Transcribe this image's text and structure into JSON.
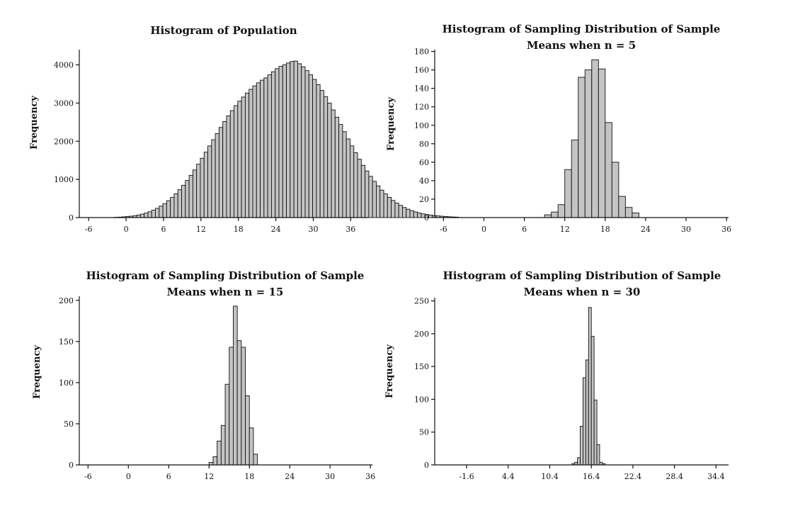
{
  "colors": {
    "bar_fill": "#c4c4c4",
    "bar_stroke": "#111111",
    "axis": "#111111",
    "text": "#111111"
  },
  "chart_data": [
    {
      "type": "bar",
      "title_lines": [
        "Histogram of Population"
      ],
      "ylabel": "Frequency",
      "xlim": [
        -7.5,
        38.8
      ],
      "ylim": [
        0,
        4400
      ],
      "xticks": [
        -6,
        0,
        6,
        12,
        18,
        24,
        30,
        36
      ],
      "xtick_labels": [
        "-6",
        "0",
        "6",
        "12",
        "18",
        "24",
        "30",
        "36"
      ],
      "yticks": [
        0,
        1000,
        2000,
        3000,
        4000
      ],
      "grid": false,
      "bin_width": 0.6,
      "bins_start": -1.9,
      "values": [
        8,
        12,
        18,
        26,
        36,
        50,
        66,
        90,
        118,
        152,
        194,
        242,
        300,
        366,
        442,
        528,
        624,
        730,
        846,
        972,
        1106,
        1248,
        1398,
        1554,
        1714,
        1876,
        2040,
        2202,
        2362,
        2516,
        2664,
        2802,
        2932,
        3050,
        3158,
        3262,
        3360,
        3450,
        3530,
        3600,
        3660,
        3740,
        3820,
        3900,
        3960,
        4000,
        4050,
        4090,
        4100,
        4030,
        3950,
        3850,
        3740,
        3620,
        3480,
        3330,
        3170,
        3000,
        2820,
        2630,
        2440,
        2250,
        2060,
        1880,
        1700,
        1530,
        1370,
        1220,
        1080,
        950,
        830,
        720,
        620,
        530,
        450,
        380,
        320,
        265,
        220,
        180,
        148,
        120,
        98,
        80,
        66,
        54,
        44,
        36,
        28,
        22,
        16,
        12
      ]
    },
    {
      "type": "bar",
      "title_lines": [
        "Histogram of Sampling Distribution of Sample",
        "Means when n = 5"
      ],
      "ylabel": "Frequency",
      "xlim": [
        -7.3,
        36.3
      ],
      "ylim": [
        0,
        182
      ],
      "xticks": [
        -6,
        0,
        6,
        12,
        18,
        24,
        30,
        36
      ],
      "xtick_labels": [
        "-6",
        "0",
        "6",
        "12",
        "18",
        "24",
        "30",
        "36"
      ],
      "yticks": [
        0,
        20,
        40,
        60,
        80,
        100,
        120,
        140,
        160,
        180
      ],
      "grid": false,
      "bin_width": 1.0,
      "bins_start": 9,
      "values": [
        3,
        6,
        14,
        52,
        84,
        152,
        160,
        171,
        161,
        103,
        60,
        23,
        11,
        5
      ]
    },
    {
      "type": "bar",
      "title_lines": [
        "Histogram of Sampling Distribution of Sample",
        "Means when n = 15"
      ],
      "ylabel": "Frequency",
      "xlim": [
        -7.3,
        36.3
      ],
      "ylim": [
        0,
        205
      ],
      "xticks": [
        -6,
        0,
        6,
        12,
        18,
        24,
        30,
        36
      ],
      "xtick_labels": [
        "-6",
        "0",
        "6",
        "12",
        "18",
        "24",
        "30",
        "36"
      ],
      "yticks": [
        0,
        50,
        100,
        150,
        200
      ],
      "grid": false,
      "bin_width": 0.6,
      "bins_start": 12.0,
      "values": [
        3,
        10,
        29,
        48,
        98,
        143,
        193,
        151,
        143,
        84,
        45,
        13
      ]
    },
    {
      "type": "bar",
      "title_lines": [
        "Histogram of Sampling Distribution of Sample",
        "Means when n = 30"
      ],
      "ylabel": "Frequency",
      "xlim": [
        -6.2,
        36.2
      ],
      "ylim": [
        0,
        255
      ],
      "xticks": [
        -1.6,
        4.4,
        10.4,
        16.4,
        22.4,
        28.4,
        34.4
      ],
      "xtick_labels": [
        "-1.6",
        "4.4",
        "10.4",
        "16.4",
        "22.4",
        "28.4",
        "34.4"
      ],
      "yticks": [
        0,
        50,
        100,
        150,
        200,
        250
      ],
      "grid": false,
      "bin_width": 0.4,
      "bins_start": 13.6,
      "values": [
        2,
        4,
        11,
        59,
        133,
        160,
        240,
        196,
        99,
        31,
        4,
        2
      ]
    }
  ]
}
